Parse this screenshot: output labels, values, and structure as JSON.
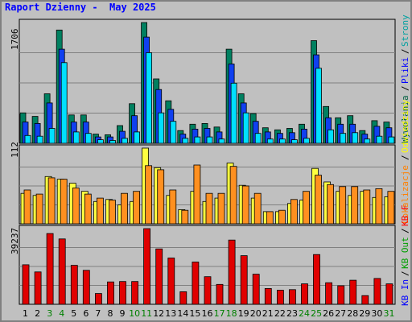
{
  "title": "Raport Dzienny -  May 2025",
  "panels": {
    "top_max": "1706",
    "mid_max": "112",
    "bot_max": "39237"
  },
  "legend": {
    "top": [
      {
        "label": "Wywołania",
        "color": "#006040"
      },
      {
        "label": "Pliki",
        "color": "#0000ff"
      },
      {
        "label": "Strony",
        "color": "#00a0a0"
      }
    ],
    "mid": [
      {
        "label": "Lokalizacje",
        "color": "#ff8000"
      },
      {
        "label": "Odwiedziny",
        "color": "#ffff00"
      }
    ],
    "bot": [
      {
        "label": "KB In",
        "color": "#0000ff"
      },
      {
        "label": "KB Out",
        "color": "#00a000"
      },
      {
        "label": "KB F",
        "color": "#ff0000"
      }
    ]
  },
  "chart_data": {
    "type": "bar",
    "title": "Raport Dzienny -  May 2025",
    "categories": [
      "1",
      "2",
      "3",
      "4",
      "5",
      "6",
      "7",
      "8",
      "9",
      "10",
      "11",
      "12",
      "13",
      "14",
      "15",
      "16",
      "17",
      "18",
      "19",
      "20",
      "21",
      "22",
      "23",
      "24",
      "25",
      "26",
      "27",
      "28",
      "29",
      "30",
      "31"
    ],
    "weekend_days": [
      "3",
      "4",
      "10",
      "11",
      "17",
      "18",
      "24",
      "25",
      "31"
    ],
    "panels": [
      {
        "name": "top",
        "ymax": 1706,
        "series": [
          {
            "name": "Wywołania",
            "color": "#008060",
            "values": [
              430,
              380,
              700,
              1600,
              400,
              400,
              130,
              120,
              250,
              560,
              1706,
              910,
              600,
              180,
              270,
              280,
              230,
              1330,
              700,
              420,
              220,
              190,
              210,
              270,
              1450,
              520,
              360,
              390,
              180,
              320,
              300
            ]
          },
          {
            "name": "Pliki",
            "color": "#1040f0",
            "values": [
              300,
              280,
              570,
              1330,
              300,
              300,
              90,
              90,
              170,
              390,
              1500,
              760,
              480,
              130,
              200,
              210,
              160,
              1120,
              570,
              310,
              160,
              140,
              150,
              200,
              1250,
              360,
              270,
              270,
              130,
              240,
              220
            ]
          },
          {
            "name": "Strony",
            "color": "#00e0ff",
            "values": [
              110,
              100,
              210,
              1140,
              160,
              140,
              50,
              40,
              70,
              160,
              1280,
              430,
              310,
              70,
              90,
              90,
              60,
              850,
              430,
              140,
              60,
              60,
              50,
              70,
              1060,
              190,
              140,
              150,
              60,
              100,
              90
            ]
          }
        ]
      },
      {
        "name": "mid",
        "ymax": 112,
        "series": [
          {
            "name": "Odwiedziny",
            "color": "#ffff40",
            "values": [
              45,
              42,
              70,
              66,
              60,
              48,
              33,
              36,
              28,
              33,
              112,
              83,
              42,
              21,
              48,
              33,
              38,
              90,
              57,
              38,
              18,
              18,
              30,
              35,
              82,
              62,
              48,
              42,
              48,
              39,
              40
            ]
          },
          {
            "name": "Lokalizacje",
            "color": "#ff9020",
            "values": [
              50,
              44,
              68,
              66,
              53,
              44,
              38,
              35,
              45,
              48,
              86,
              80,
              50,
              20,
              87,
              45,
              45,
              85,
              56,
              45,
              18,
              20,
              36,
              48,
              72,
              58,
              55,
              55,
              50,
              52,
              48
            ]
          }
        ]
      },
      {
        "name": "bot",
        "ymax": 39237,
        "series": [
          {
            "name": "KB F",
            "color": "#e00000",
            "values": [
              20500,
              16800,
              36700,
              33900,
              20200,
              17600,
              5600,
              11600,
              11800,
              11800,
              39237,
              28700,
              24000,
              6500,
              21900,
              14300,
              10300,
              33300,
              25200,
              15600,
              8200,
              7300,
              7600,
              10600,
              25800,
              11200,
              9600,
              12500,
              4500,
              13400,
              10600
            ]
          }
        ]
      }
    ]
  }
}
